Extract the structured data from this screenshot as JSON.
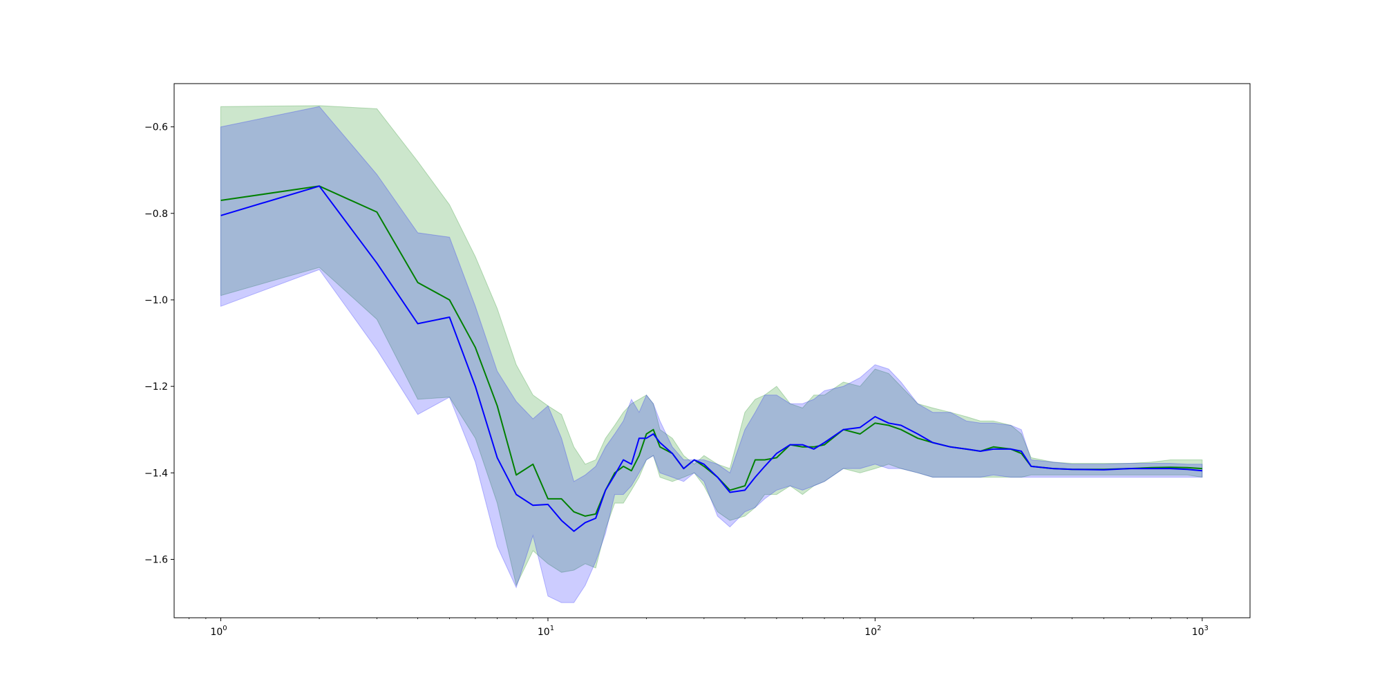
{
  "chart_data": {
    "type": "line",
    "title": "",
    "xlabel": "",
    "ylabel": "",
    "xscale": "log",
    "xlim": [
      0.72,
      1400
    ],
    "ylim": [
      -1.735,
      -0.5
    ],
    "grid": false,
    "legend": null,
    "x_ticks": [
      {
        "value": 1,
        "base": "10",
        "exp": "0"
      },
      {
        "value": 10,
        "base": "10",
        "exp": "1"
      },
      {
        "value": 100,
        "base": "10",
        "exp": "2"
      },
      {
        "value": 1000,
        "base": "10",
        "exp": "3"
      }
    ],
    "y_ticks": [
      {
        "value": -0.6,
        "label": "−0.6"
      },
      {
        "value": -0.8,
        "label": "−0.8"
      },
      {
        "value": -1.0,
        "label": "−1.0"
      },
      {
        "value": -1.2,
        "label": "−1.2"
      },
      {
        "value": -1.4,
        "label": "−1.4"
      },
      {
        "value": -1.6,
        "label": "−1.6"
      }
    ],
    "series": [
      {
        "color": "#008000",
        "band_color": "#008000",
        "band_opacity": 0.2,
        "x": [
          1,
          2,
          3,
          4,
          5,
          6,
          7,
          8,
          9,
          10,
          11,
          12,
          13,
          14,
          15,
          16,
          17,
          18,
          19,
          20,
          21,
          22,
          24,
          26,
          28,
          30,
          33,
          36,
          40,
          43,
          46,
          50,
          55,
          60,
          65,
          70,
          80,
          90,
          100,
          110,
          120,
          135,
          150,
          170,
          190,
          210,
          230,
          260,
          280,
          300,
          350,
          400,
          500,
          600,
          700,
          800,
          900,
          1000
        ],
        "y": [
          -0.77,
          -0.737,
          -0.797,
          -0.96,
          -1.0,
          -1.11,
          -1.245,
          -1.405,
          -1.38,
          -1.46,
          -1.46,
          -1.49,
          -1.5,
          -1.495,
          -1.44,
          -1.4,
          -1.385,
          -1.395,
          -1.36,
          -1.31,
          -1.3,
          -1.34,
          -1.355,
          -1.39,
          -1.37,
          -1.385,
          -1.41,
          -1.44,
          -1.43,
          -1.37,
          -1.37,
          -1.365,
          -1.335,
          -1.34,
          -1.34,
          -1.335,
          -1.3,
          -1.31,
          -1.285,
          -1.29,
          -1.3,
          -1.32,
          -1.33,
          -1.34,
          -1.345,
          -1.35,
          -1.34,
          -1.345,
          -1.355,
          -1.385,
          -1.39,
          -1.392,
          -1.392,
          -1.39,
          -1.388,
          -1.387,
          -1.388,
          -1.39
        ],
        "upper": [
          -0.553,
          -0.551,
          -0.558,
          -0.68,
          -0.78,
          -0.9,
          -1.02,
          -1.15,
          -1.22,
          -1.245,
          -1.265,
          -1.34,
          -1.38,
          -1.37,
          -1.32,
          -1.29,
          -1.26,
          -1.24,
          -1.23,
          -1.22,
          -1.24,
          -1.3,
          -1.32,
          -1.36,
          -1.38,
          -1.36,
          -1.38,
          -1.39,
          -1.26,
          -1.23,
          -1.22,
          -1.2,
          -1.24,
          -1.25,
          -1.22,
          -1.22,
          -1.19,
          -1.2,
          -1.16,
          -1.17,
          -1.2,
          -1.24,
          -1.25,
          -1.26,
          -1.27,
          -1.28,
          -1.28,
          -1.29,
          -1.31,
          -1.365,
          -1.375,
          -1.378,
          -1.378,
          -1.378,
          -1.375,
          -1.37,
          -1.37,
          -1.37
        ],
        "lower": [
          -0.99,
          -0.925,
          -1.045,
          -1.23,
          -1.225,
          -1.32,
          -1.47,
          -1.66,
          -1.58,
          -1.61,
          -1.63,
          -1.625,
          -1.61,
          -1.62,
          -1.53,
          -1.47,
          -1.47,
          -1.44,
          -1.41,
          -1.37,
          -1.36,
          -1.41,
          -1.42,
          -1.41,
          -1.4,
          -1.43,
          -1.49,
          -1.51,
          -1.5,
          -1.48,
          -1.45,
          -1.45,
          -1.43,
          -1.45,
          -1.43,
          -1.42,
          -1.39,
          -1.4,
          -1.39,
          -1.38,
          -1.39,
          -1.4,
          -1.41,
          -1.41,
          -1.41,
          -1.41,
          -1.41,
          -1.41,
          -1.41,
          -1.405,
          -1.405,
          -1.405,
          -1.405,
          -1.405,
          -1.405,
          -1.405,
          -1.405,
          -1.41
        ]
      },
      {
        "color": "#0000ff",
        "band_color": "#0000ff",
        "band_opacity": 0.2,
        "x": [
          1,
          2,
          3,
          4,
          5,
          6,
          7,
          8,
          9,
          10,
          11,
          12,
          13,
          14,
          15,
          16,
          17,
          18,
          19,
          20,
          21,
          22,
          24,
          26,
          28,
          30,
          33,
          36,
          40,
          43,
          46,
          50,
          55,
          60,
          65,
          70,
          80,
          90,
          100,
          110,
          120,
          135,
          150,
          170,
          190,
          210,
          230,
          260,
          280,
          300,
          350,
          400,
          500,
          600,
          700,
          800,
          900,
          1000
        ],
        "y": [
          -0.805,
          -0.737,
          -0.915,
          -1.055,
          -1.04,
          -1.2,
          -1.365,
          -1.45,
          -1.475,
          -1.473,
          -1.51,
          -1.535,
          -1.515,
          -1.505,
          -1.44,
          -1.405,
          -1.37,
          -1.38,
          -1.32,
          -1.32,
          -1.31,
          -1.33,
          -1.355,
          -1.39,
          -1.37,
          -1.38,
          -1.41,
          -1.445,
          -1.44,
          -1.41,
          -1.385,
          -1.355,
          -1.335,
          -1.335,
          -1.345,
          -1.33,
          -1.3,
          -1.295,
          -1.27,
          -1.285,
          -1.29,
          -1.31,
          -1.33,
          -1.34,
          -1.345,
          -1.35,
          -1.345,
          -1.345,
          -1.35,
          -1.385,
          -1.39,
          -1.392,
          -1.393,
          -1.39,
          -1.39,
          -1.39,
          -1.392,
          -1.395
        ],
        "upper": [
          -0.6,
          -0.553,
          -0.71,
          -0.845,
          -0.855,
          -1.015,
          -1.165,
          -1.235,
          -1.275,
          -1.245,
          -1.32,
          -1.42,
          -1.405,
          -1.385,
          -1.34,
          -1.31,
          -1.28,
          -1.23,
          -1.26,
          -1.22,
          -1.24,
          -1.28,
          -1.34,
          -1.37,
          -1.37,
          -1.37,
          -1.38,
          -1.4,
          -1.3,
          -1.26,
          -1.22,
          -1.22,
          -1.24,
          -1.24,
          -1.23,
          -1.21,
          -1.2,
          -1.18,
          -1.15,
          -1.16,
          -1.19,
          -1.24,
          -1.26,
          -1.26,
          -1.28,
          -1.285,
          -1.285,
          -1.29,
          -1.3,
          -1.37,
          -1.375,
          -1.38,
          -1.38,
          -1.378,
          -1.378,
          -1.378,
          -1.38,
          -1.38
        ],
        "lower": [
          -1.015,
          -0.93,
          -1.115,
          -1.265,
          -1.225,
          -1.375,
          -1.57,
          -1.665,
          -1.545,
          -1.685,
          -1.7,
          -1.7,
          -1.66,
          -1.605,
          -1.54,
          -1.45,
          -1.45,
          -1.43,
          -1.4,
          -1.37,
          -1.36,
          -1.4,
          -1.41,
          -1.42,
          -1.4,
          -1.42,
          -1.5,
          -1.525,
          -1.49,
          -1.48,
          -1.46,
          -1.44,
          -1.43,
          -1.44,
          -1.43,
          -1.42,
          -1.39,
          -1.39,
          -1.38,
          -1.39,
          -1.39,
          -1.4,
          -1.41,
          -1.41,
          -1.41,
          -1.41,
          -1.405,
          -1.41,
          -1.41,
          -1.41,
          -1.41,
          -1.41,
          -1.41,
          -1.41,
          -1.41,
          -1.41,
          -1.41,
          -1.41
        ]
      }
    ]
  }
}
